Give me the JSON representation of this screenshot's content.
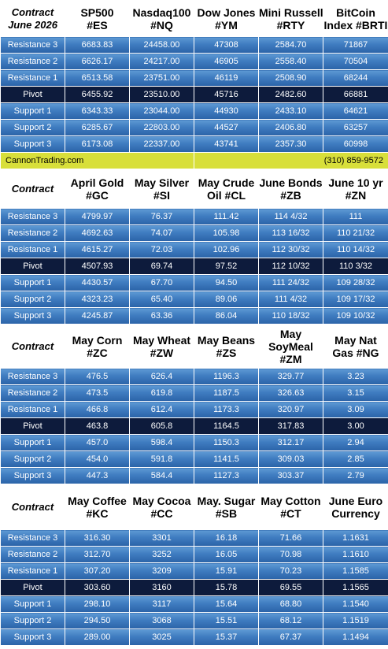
{
  "sections": [
    {
      "header_height": 46,
      "headers": [
        "Contract\nJune 2026",
        "SP500\n#ES",
        "Nasdaq100\n#NQ",
        "Dow Jones\n#YM",
        "Mini Russell\n#RTY",
        "BitCoin\nIndex #BRTI"
      ],
      "rows": [
        {
          "label": "Resistance 3",
          "values": [
            "6683.83",
            "24458.00",
            "47308",
            "2584.70",
            "71867"
          ]
        },
        {
          "label": "Resistance 2",
          "values": [
            "6626.17",
            "24217.00",
            "46905",
            "2558.40",
            "70504"
          ]
        },
        {
          "label": "Resistance 1",
          "values": [
            "6513.58",
            "23751.00",
            "46119",
            "2508.90",
            "68244"
          ]
        },
        {
          "label": "Pivot",
          "values": [
            "6455.92",
            "23510.00",
            "45716",
            "2482.60",
            "66881"
          ]
        },
        {
          "label": "Support 1",
          "values": [
            "6343.33",
            "23044.00",
            "44930",
            "2433.10",
            "64621"
          ]
        },
        {
          "label": "Support 2",
          "values": [
            "6285.67",
            "22803.00",
            "44527",
            "2406.80",
            "63257"
          ]
        },
        {
          "label": "Support 3",
          "values": [
            "6173.08",
            "22337.00",
            "43741",
            "2357.30",
            "60998"
          ]
        }
      ]
    },
    {
      "header_height": 50,
      "headers": [
        "Contract",
        "April Gold\n#GC",
        "May Silver\n#SI",
        "May Crude\nOil #CL",
        "June Bonds\n#ZB",
        "June 10 yr\n#ZN"
      ],
      "rows": [
        {
          "label": "Resistance 3",
          "values": [
            "4799.97",
            "76.37",
            "111.42",
            "114  4/32",
            "111"
          ]
        },
        {
          "label": "Resistance 2",
          "values": [
            "4692.63",
            "74.07",
            "105.98",
            "113 16/32",
            "110 21/32"
          ]
        },
        {
          "label": "Resistance 1",
          "values": [
            "4615.27",
            "72.03",
            "102.96",
            "112 30/32",
            "110 14/32"
          ]
        },
        {
          "label": "Pivot",
          "values": [
            "4507.93",
            "69.74",
            "97.52",
            "112 10/32",
            "110  3/32"
          ]
        },
        {
          "label": "Support 1",
          "values": [
            "4430.57",
            "67.70",
            "94.50",
            "111 24/32",
            "109 28/32"
          ]
        },
        {
          "label": "Support 2",
          "values": [
            "4323.23",
            "65.40",
            "89.06",
            "111  4/32",
            "109 17/32"
          ]
        },
        {
          "label": "Support 3",
          "values": [
            "4245.87",
            "63.36",
            "86.04",
            "110 18/32",
            "109 10/32"
          ]
        }
      ]
    },
    {
      "header_height": 56,
      "headers": [
        "Contract",
        "May Corn\n#ZC",
        "May  Wheat\n#ZW",
        "May Beans\n#ZS",
        "May\nSoyMeal\n#ZM",
        "May Nat\nGas #NG"
      ],
      "rows": [
        {
          "label": "Resistance 3",
          "values": [
            "476.5",
            "626.4",
            "1196.3",
            "329.77",
            "3.23"
          ]
        },
        {
          "label": "Resistance 2",
          "values": [
            "473.5",
            "619.8",
            "1187.5",
            "326.63",
            "3.15"
          ]
        },
        {
          "label": "Resistance 1",
          "values": [
            "466.8",
            "612.4",
            "1173.3",
            "320.97",
            "3.09"
          ]
        },
        {
          "label": "Pivot",
          "values": [
            "463.8",
            "605.8",
            "1164.5",
            "317.83",
            "3.00"
          ]
        },
        {
          "label": "Support 1",
          "values": [
            "457.0",
            "598.4",
            "1150.3",
            "312.17",
            "2.94"
          ]
        },
        {
          "label": "Support 2",
          "values": [
            "454.0",
            "591.8",
            "1141.5",
            "309.03",
            "2.85"
          ]
        },
        {
          "label": "Support 3",
          "values": [
            "447.3",
            "584.4",
            "1127.3",
            "303.37",
            "2.79"
          ]
        }
      ]
    },
    {
      "header_height": 58,
      "headers": [
        "Contract",
        "May Coffee\n#KC",
        "May Cocoa\n#CC",
        "May. Sugar\n#SB",
        "May Cotton\n#CT",
        "June Euro\nCurrency"
      ],
      "rows": [
        {
          "label": "Resistance 3",
          "values": [
            "316.30",
            "3301",
            "16.18",
            "71.66",
            "1.1631"
          ]
        },
        {
          "label": "Resistance 2",
          "values": [
            "312.70",
            "3252",
            "16.05",
            "70.98",
            "1.1610"
          ]
        },
        {
          "label": "Resistance 1",
          "values": [
            "307.20",
            "3209",
            "15.91",
            "70.23",
            "1.1585"
          ]
        },
        {
          "label": "Pivot",
          "values": [
            "303.60",
            "3160",
            "15.78",
            "69.55",
            "1.1565"
          ]
        },
        {
          "label": "Support 1",
          "values": [
            "298.10",
            "3117",
            "15.64",
            "68.80",
            "1.1540"
          ]
        },
        {
          "label": "Support 2",
          "values": [
            "294.50",
            "3068",
            "15.51",
            "68.12",
            "1.1519"
          ]
        },
        {
          "label": "Support 3",
          "values": [
            "289.00",
            "3025",
            "15.37",
            "67.37",
            "1.1494"
          ]
        }
      ]
    }
  ],
  "banner": {
    "left": "CannonTrading.com",
    "right": "(310) 859-9572",
    "color": "#d8df3a"
  },
  "colors": {
    "row_gradient_top": "#5e9ad4",
    "row_gradient_bottom": "#2b63a8",
    "pivot_bg": "#0d1b3c",
    "header_bg": "#ffffff"
  }
}
